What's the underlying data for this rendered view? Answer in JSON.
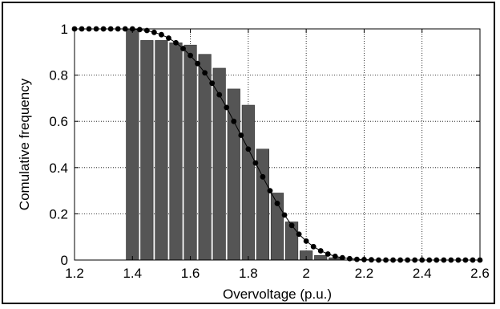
{
  "chart_data": {
    "type": "bar",
    "xlabel": "Overvoltage (p.u.)",
    "ylabel": "Comulative frequency",
    "xlim": [
      1.2,
      2.6
    ],
    "ylim": [
      0,
      1
    ],
    "x_ticks": [
      "1.2",
      "1.4",
      "1.6",
      "1.8",
      "2",
      "2.2",
      "2.4",
      "2.6"
    ],
    "y_ticks": [
      "0",
      "0.2",
      "0.4",
      "0.6",
      "0.8",
      "1"
    ],
    "grid": true,
    "colors": {
      "bars": "#555555",
      "curve": "#000000",
      "grid": "#000000"
    },
    "bars": {
      "x": [
        1.4,
        1.45,
        1.5,
        1.55,
        1.6,
        1.65,
        1.7,
        1.75,
        1.8,
        1.85,
        1.9,
        1.95,
        2.0,
        2.05,
        2.1,
        2.15,
        2.2
      ],
      "values": [
        1.0,
        0.95,
        0.95,
        0.94,
        0.93,
        0.89,
        0.83,
        0.74,
        0.67,
        0.48,
        0.29,
        0.165,
        0.04,
        0.02,
        0.01,
        0.0,
        0.0
      ]
    },
    "curve": {
      "x": [
        1.2,
        1.225,
        1.25,
        1.275,
        1.3,
        1.325,
        1.35,
        1.375,
        1.4,
        1.425,
        1.45,
        1.475,
        1.5,
        1.525,
        1.55,
        1.575,
        1.6,
        1.625,
        1.65,
        1.675,
        1.7,
        1.725,
        1.75,
        1.775,
        1.8,
        1.825,
        1.85,
        1.875,
        1.9,
        1.925,
        1.95,
        1.975,
        2.0,
        2.025,
        2.05,
        2.075,
        2.1,
        2.125,
        2.15,
        2.175,
        2.2,
        2.225,
        2.25,
        2.275,
        2.3,
        2.325,
        2.35,
        2.375,
        2.4,
        2.425,
        2.45,
        2.475,
        2.5,
        2.525,
        2.55,
        2.575,
        2.6
      ],
      "y": [
        1.0,
        1.0,
        1.0,
        1.0,
        1.0,
        1.0,
        1.0,
        1.0,
        1.0,
        0.997,
        0.993,
        0.985,
        0.975,
        0.96,
        0.94,
        0.915,
        0.885,
        0.85,
        0.81,
        0.765,
        0.715,
        0.66,
        0.6,
        0.54,
        0.48,
        0.42,
        0.36,
        0.3,
        0.245,
        0.195,
        0.15,
        0.112,
        0.082,
        0.058,
        0.04,
        0.026,
        0.016,
        0.01,
        0.006,
        0.003,
        0.002,
        0.001,
        0.0,
        0.0,
        0.0,
        0.0,
        0.0,
        0.0,
        0.0,
        0.0,
        0.0,
        0.0,
        0.0,
        0.0,
        0.0,
        0.0,
        0.0
      ]
    }
  }
}
